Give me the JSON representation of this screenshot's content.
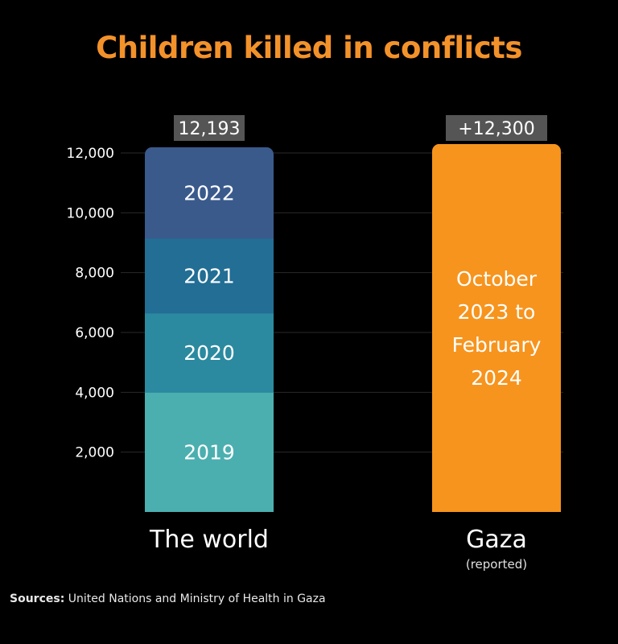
{
  "title": "Children killed in conflicts",
  "source": {
    "label": "Sources:",
    "text": "United Nations and  Ministry of Health in Gaza"
  },
  "colors": {
    "title": "#F3922A",
    "gaza": "#F7941D",
    "y2019": "#4BAFB0",
    "y2020": "#2B8A9F",
    "y2021": "#226E94",
    "y2022": "#3A5A8C",
    "grid": "#2a2a2a",
    "totalBox": "#555555"
  },
  "chart_data": {
    "type": "bar",
    "stacked": true,
    "title": "Children killed in conflicts",
    "ylim": [
      0,
      12000
    ],
    "yticks": [
      2000,
      4000,
      6000,
      8000,
      10000,
      12000
    ],
    "ytick_labels": [
      "2,000",
      "4,000",
      "6,000",
      "8,000",
      "10,000",
      "12,000"
    ],
    "grid": true,
    "bars": [
      {
        "label": "The world",
        "sublabel": "",
        "total_label": "12,193",
        "segments": [
          {
            "label": "2019",
            "value": 4000,
            "color": "#4BAFB0"
          },
          {
            "label": "2020",
            "value": 2650,
            "color": "#2B8A9F"
          },
          {
            "label": "2021",
            "value": 2500,
            "color": "#226E94"
          },
          {
            "label": "2022",
            "value": 3043,
            "color": "#3A5A8C"
          }
        ]
      },
      {
        "label": "Gaza",
        "sublabel": "(reported)",
        "total_label": "+12,300",
        "segments": [
          {
            "label": "October 2023 to February 2024",
            "lines": [
              "October",
              "2023 to",
              "February",
              "2024"
            ],
            "value": 12300,
            "color": "#F7941D"
          }
        ]
      }
    ]
  }
}
